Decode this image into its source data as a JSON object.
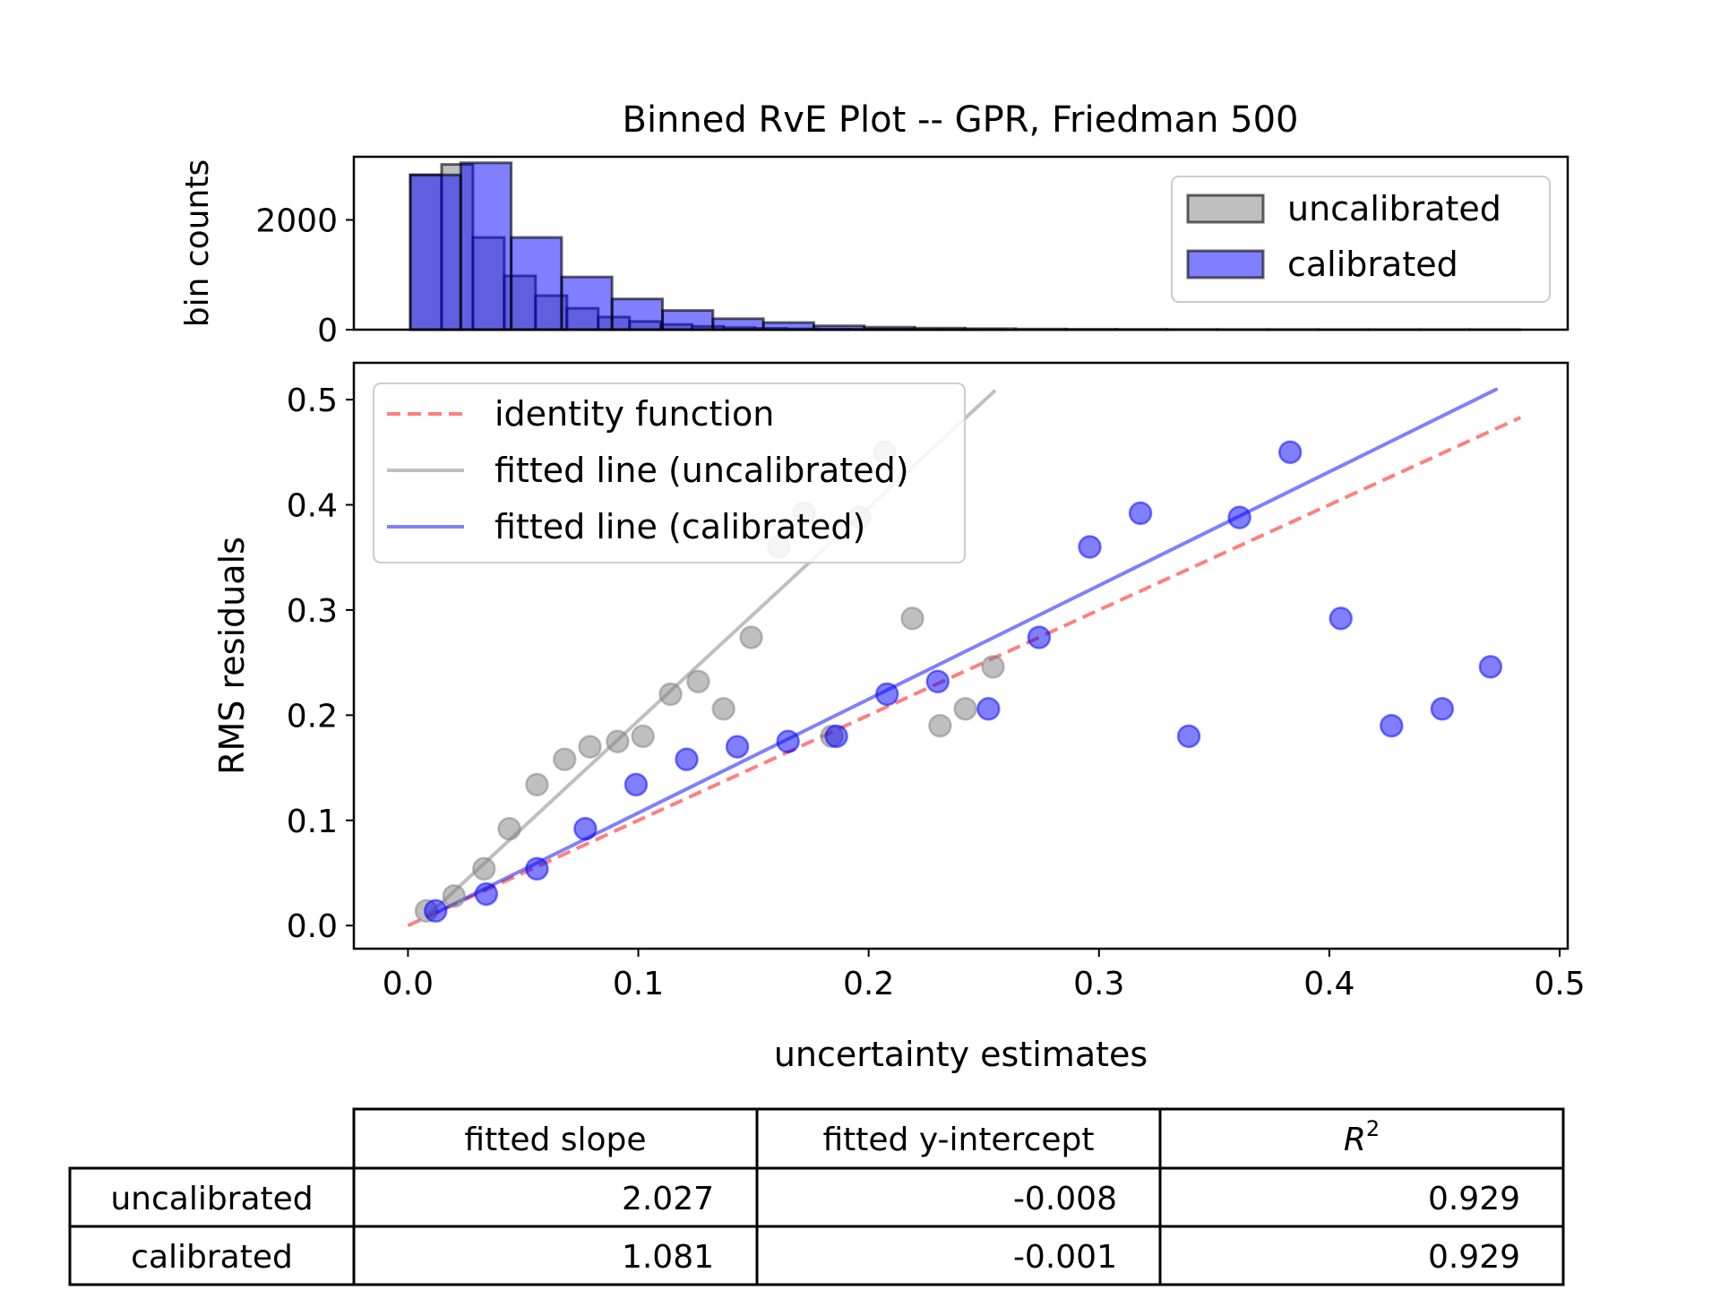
{
  "title": "Binned RvE Plot -- GPR, Friedman 500",
  "chart_data": [
    {
      "type": "bar",
      "panel": "histogram",
      "ylabel": "bin counts",
      "ylim": [
        0,
        3150
      ],
      "yticks": [
        0,
        2000
      ],
      "ytick_labels": [
        "0",
        "2000"
      ],
      "legend_placement": "top-right",
      "series": [
        {
          "name": "uncalibrated",
          "color": "#808080",
          "bins": [
            {
              "x0": 0.001,
              "x1": 0.0146,
              "count": 2820
            },
            {
              "x0": 0.0146,
              "x1": 0.0282,
              "count": 3010
            },
            {
              "x0": 0.0282,
              "x1": 0.0418,
              "count": 1680
            },
            {
              "x0": 0.0418,
              "x1": 0.0554,
              "count": 980
            },
            {
              "x0": 0.0554,
              "x1": 0.069,
              "count": 620
            },
            {
              "x0": 0.069,
              "x1": 0.0826,
              "count": 390
            },
            {
              "x0": 0.0826,
              "x1": 0.0962,
              "count": 230
            },
            {
              "x0": 0.0962,
              "x1": 0.1098,
              "count": 150
            },
            {
              "x0": 0.1098,
              "x1": 0.1234,
              "count": 95
            },
            {
              "x0": 0.1234,
              "x1": 0.137,
              "count": 60
            },
            {
              "x0": 0.137,
              "x1": 0.1506,
              "count": 38
            },
            {
              "x0": 0.1506,
              "x1": 0.1642,
              "count": 24
            },
            {
              "x0": 0.1642,
              "x1": 0.1778,
              "count": 15
            },
            {
              "x0": 0.1778,
              "x1": 0.1914,
              "count": 9
            },
            {
              "x0": 0.1914,
              "x1": 0.205,
              "count": 6
            },
            {
              "x0": 0.205,
              "x1": 0.2186,
              "count": 4
            },
            {
              "x0": 0.2186,
              "x1": 0.2322,
              "count": 2
            },
            {
              "x0": 0.2322,
              "x1": 0.2458,
              "count": 2
            },
            {
              "x0": 0.2458,
              "x1": 0.2594,
              "count": 1
            }
          ]
        },
        {
          "name": "calibrated",
          "color": "#0000ff",
          "bins": [
            {
              "x0": 0.001,
              "x1": 0.0229,
              "count": 2820
            },
            {
              "x0": 0.0229,
              "x1": 0.0448,
              "count": 3040
            },
            {
              "x0": 0.0448,
              "x1": 0.0667,
              "count": 1680
            },
            {
              "x0": 0.0667,
              "x1": 0.0886,
              "count": 960
            },
            {
              "x0": 0.0886,
              "x1": 0.1105,
              "count": 560
            },
            {
              "x0": 0.1105,
              "x1": 0.1324,
              "count": 350
            },
            {
              "x0": 0.1324,
              "x1": 0.1543,
              "count": 200
            },
            {
              "x0": 0.1543,
              "x1": 0.1762,
              "count": 130
            },
            {
              "x0": 0.1762,
              "x1": 0.1981,
              "count": 70
            },
            {
              "x0": 0.1981,
              "x1": 0.22,
              "count": 45
            },
            {
              "x0": 0.22,
              "x1": 0.2419,
              "count": 28
            },
            {
              "x0": 0.2419,
              "x1": 0.2638,
              "count": 18
            },
            {
              "x0": 0.2638,
              "x1": 0.2857,
              "count": 11
            },
            {
              "x0": 0.2857,
              "x1": 0.3076,
              "count": 7
            },
            {
              "x0": 0.3076,
              "x1": 0.3295,
              "count": 5
            },
            {
              "x0": 0.3295,
              "x1": 0.3514,
              "count": 3
            },
            {
              "x0": 0.3514,
              "x1": 0.3733,
              "count": 2
            },
            {
              "x0": 0.3733,
              "x1": 0.3952,
              "count": 2
            },
            {
              "x0": 0.3952,
              "x1": 0.4171,
              "count": 1
            },
            {
              "x0": 0.4171,
              "x1": 0.439,
              "count": 1
            },
            {
              "x0": 0.439,
              "x1": 0.4609,
              "count": 1
            },
            {
              "x0": 0.4609,
              "x1": 0.4828,
              "count": 1
            }
          ]
        }
      ]
    },
    {
      "type": "scatter",
      "panel": "main",
      "xlabel": "uncertainty estimates",
      "ylabel": "RMS residuals",
      "xlim": [
        -0.0235,
        0.5035
      ],
      "ylim": [
        -0.022,
        0.535
      ],
      "xticks": [
        0.0,
        0.1,
        0.2,
        0.3,
        0.4,
        0.5
      ],
      "xtick_labels": [
        "0.0",
        "0.1",
        "0.2",
        "0.3",
        "0.4",
        "0.5"
      ],
      "yticks": [
        0.0,
        0.1,
        0.2,
        0.3,
        0.4,
        0.5
      ],
      "ytick_labels": [
        "0.0",
        "0.1",
        "0.2",
        "0.3",
        "0.4",
        "0.5"
      ],
      "legend_placement": "top-left",
      "series": [
        {
          "name": "uncalibrated",
          "color": "#808080",
          "points": [
            [
              0.008,
              0.014
            ],
            [
              0.02,
              0.028
            ],
            [
              0.033,
              0.054
            ],
            [
              0.044,
              0.092
            ],
            [
              0.056,
              0.134
            ],
            [
              0.068,
              0.158
            ],
            [
              0.079,
              0.17
            ],
            [
              0.091,
              0.175
            ],
            [
              0.102,
              0.18
            ],
            [
              0.114,
              0.22
            ],
            [
              0.126,
              0.232
            ],
            [
              0.137,
              0.206
            ],
            [
              0.149,
              0.274
            ],
            [
              0.161,
              0.36
            ],
            [
              0.172,
              0.392
            ],
            [
              0.184,
              0.18
            ],
            [
              0.196,
              0.388
            ],
            [
              0.207,
              0.45
            ],
            [
              0.219,
              0.292
            ],
            [
              0.231,
              0.19
            ],
            [
              0.242,
              0.206
            ],
            [
              0.254,
              0.246
            ]
          ]
        },
        {
          "name": "calibrated",
          "color": "#0000ff",
          "points": [
            [
              0.012,
              0.014
            ],
            [
              0.034,
              0.03
            ],
            [
              0.056,
              0.054
            ],
            [
              0.077,
              0.092
            ],
            [
              0.099,
              0.134
            ],
            [
              0.121,
              0.158
            ],
            [
              0.143,
              0.17
            ],
            [
              0.165,
              0.175
            ],
            [
              0.186,
              0.18
            ],
            [
              0.208,
              0.22
            ],
            [
              0.23,
              0.232
            ],
            [
              0.252,
              0.206
            ],
            [
              0.274,
              0.274
            ],
            [
              0.296,
              0.36
            ],
            [
              0.318,
              0.392
            ],
            [
              0.339,
              0.18
            ],
            [
              0.361,
              0.388
            ],
            [
              0.383,
              0.45
            ],
            [
              0.405,
              0.292
            ],
            [
              0.427,
              0.19
            ],
            [
              0.449,
              0.206
            ],
            [
              0.47,
              0.246
            ]
          ]
        }
      ],
      "lines": [
        {
          "name": "identity function",
          "color": "#ff0000",
          "style": "dashed",
          "slope": 1.0,
          "intercept": 0.0,
          "x_range": [
            0.0,
            0.483
          ]
        },
        {
          "name": "fitted line (uncalibrated)",
          "color": "#808080",
          "style": "solid",
          "slope": 2.027,
          "intercept": -0.008,
          "x_range": [
            0.008,
            0.255
          ]
        },
        {
          "name": "fitted line (calibrated)",
          "color": "#0000ff",
          "style": "solid",
          "slope": 1.081,
          "intercept": -0.001,
          "x_range": [
            0.012,
            0.473
          ]
        }
      ]
    },
    {
      "type": "table",
      "panel": "fit-statistics",
      "columns": [
        "fitted slope",
        "fitted y-intercept",
        "R^2"
      ],
      "rows": [
        {
          "label": "uncalibrated",
          "values": [
            "2.027",
            "-0.008",
            "0.929"
          ]
        },
        {
          "label": "calibrated",
          "values": [
            "1.081",
            "-0.001",
            "0.929"
          ]
        }
      ]
    }
  ]
}
